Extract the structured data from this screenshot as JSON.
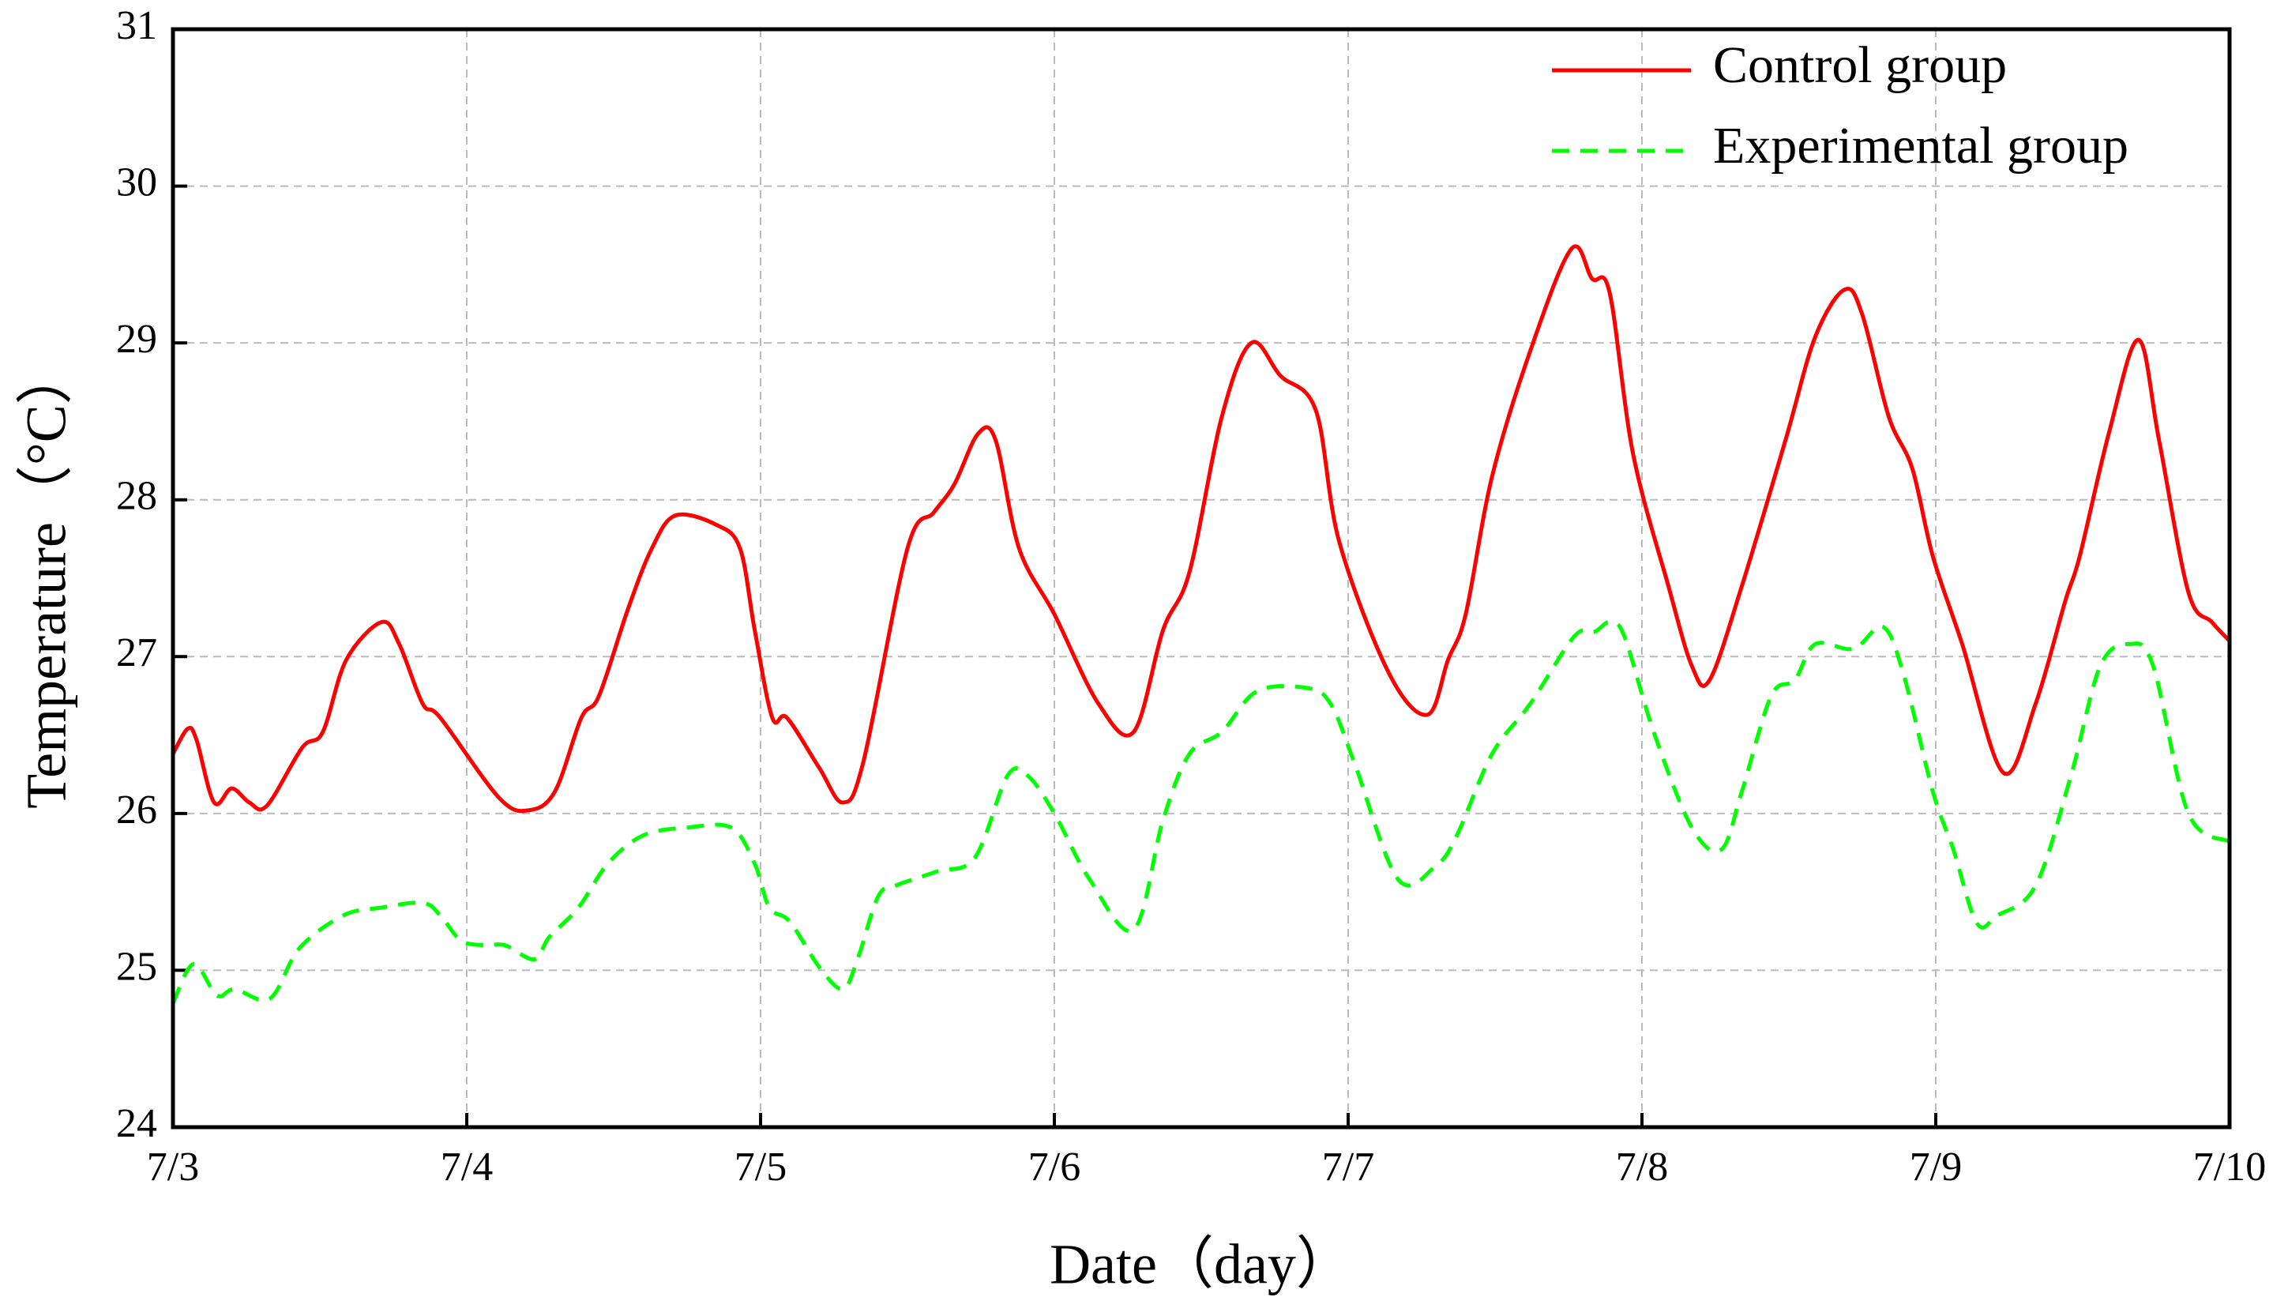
{
  "chart_data": {
    "type": "line",
    "x_label": "Date（day）",
    "y_label": "Temperature（°C）",
    "xlim": [
      0,
      7
    ],
    "xticks": [
      {
        "value": 0,
        "label": "7/3"
      },
      {
        "value": 1,
        "label": "7/4"
      },
      {
        "value": 2,
        "label": "7/5"
      },
      {
        "value": 3,
        "label": "7/6"
      },
      {
        "value": 4,
        "label": "7/7"
      },
      {
        "value": 5,
        "label": "7/8"
      },
      {
        "value": 6,
        "label": "7/9"
      },
      {
        "value": 7,
        "label": "7/10"
      }
    ],
    "ylim": [
      24,
      31
    ],
    "yticks": [
      24,
      25,
      26,
      27,
      28,
      29,
      30,
      31
    ],
    "grid": true,
    "legend": "upper right",
    "series": [
      {
        "name": "Control group",
        "color": "#ff0000",
        "style": "solid",
        "x": [
          0,
          0.05,
          0.08,
          0.14,
          0.2,
          0.26,
          0.32,
          0.44,
          0.51,
          0.59,
          0.71,
          0.77,
          0.85,
          0.91,
          1.11,
          1.21,
          1.3,
          1.39,
          1.45,
          1.55,
          1.63,
          1.71,
          1.85,
          1.93,
          1.98,
          2.04,
          2.09,
          2.2,
          2.28,
          2.35,
          2.5,
          2.59,
          2.66,
          2.74,
          2.8,
          2.88,
          3.0,
          3.15,
          3.27,
          3.37,
          3.46,
          3.57,
          3.67,
          3.77,
          3.89,
          3.97,
          4.14,
          4.27,
          4.34,
          4.4,
          4.49,
          4.62,
          4.76,
          4.83,
          4.89,
          4.97,
          5.09,
          5.17,
          5.23,
          5.34,
          5.49,
          5.59,
          5.69,
          5.75,
          5.84,
          5.92,
          5.99,
          6.09,
          6.23,
          6.34,
          6.44,
          6.49,
          6.59,
          6.69,
          6.76,
          6.86,
          6.94,
          7.0
        ],
        "values": [
          26.38,
          26.54,
          26.47,
          26.07,
          26.16,
          26.07,
          26.05,
          26.42,
          26.52,
          26.98,
          27.22,
          27.08,
          26.7,
          26.61,
          26.1,
          26.02,
          26.14,
          26.61,
          26.75,
          27.31,
          27.69,
          27.9,
          27.84,
          27.69,
          27.17,
          26.61,
          26.61,
          26.29,
          26.07,
          26.33,
          27.69,
          27.92,
          28.1,
          28.42,
          28.38,
          27.69,
          27.27,
          26.7,
          26.52,
          27.17,
          27.54,
          28.53,
          29.0,
          28.79,
          28.57,
          27.73,
          26.89,
          26.63,
          26.98,
          27.27,
          28.15,
          28.95,
          29.6,
          29.41,
          29.32,
          28.29,
          27.45,
          26.94,
          26.85,
          27.45,
          28.39,
          29.04,
          29.34,
          29.18,
          28.53,
          28.2,
          27.64,
          27.08,
          26.26,
          26.7,
          27.35,
          27.64,
          28.43,
          29.02,
          28.38,
          27.41,
          27.22,
          27.1
        ]
      },
      {
        "name": "Experimental group",
        "color": "#00ff00",
        "style": "dashed",
        "x": [
          0,
          0.07,
          0.15,
          0.21,
          0.33,
          0.43,
          0.58,
          0.71,
          0.85,
          0.91,
          0.98,
          1.06,
          1.13,
          1.23,
          1.28,
          1.38,
          1.48,
          1.6,
          1.75,
          1.9,
          1.98,
          2.03,
          2.1,
          2.2,
          2.28,
          2.33,
          2.4,
          2.46,
          2.6,
          2.73,
          2.84,
          2.91,
          3.0,
          3.12,
          3.27,
          3.37,
          3.46,
          3.57,
          3.69,
          3.86,
          3.94,
          4.02,
          4.17,
          4.3,
          4.37,
          4.49,
          4.62,
          4.77,
          4.84,
          4.89,
          4.94,
          5.04,
          5.17,
          5.27,
          5.34,
          5.44,
          5.52,
          5.59,
          5.72,
          5.82,
          5.89,
          5.99,
          6.06,
          6.14,
          6.21,
          6.34,
          6.46,
          6.56,
          6.66,
          6.74,
          6.86,
          7.0
        ],
        "values": [
          24.79,
          25.04,
          24.84,
          24.88,
          24.82,
          25.14,
          25.35,
          25.4,
          25.43,
          25.35,
          25.19,
          25.16,
          25.16,
          25.07,
          25.21,
          25.4,
          25.68,
          25.86,
          25.91,
          25.91,
          25.68,
          25.4,
          25.31,
          25.02,
          24.88,
          25.07,
          25.47,
          25.54,
          25.63,
          25.72,
          26.24,
          26.24,
          26.0,
          25.58,
          25.26,
          25.96,
          26.38,
          26.52,
          26.78,
          26.8,
          26.7,
          26.33,
          25.58,
          25.67,
          25.86,
          26.38,
          26.7,
          27.13,
          27.16,
          27.22,
          27.13,
          26.52,
          25.91,
          25.77,
          26.14,
          26.75,
          26.85,
          27.08,
          27.05,
          27.19,
          26.89,
          26.14,
          25.77,
          25.3,
          25.35,
          25.54,
          26.24,
          26.94,
          27.08,
          26.94,
          26.0,
          25.82
        ]
      }
    ]
  }
}
